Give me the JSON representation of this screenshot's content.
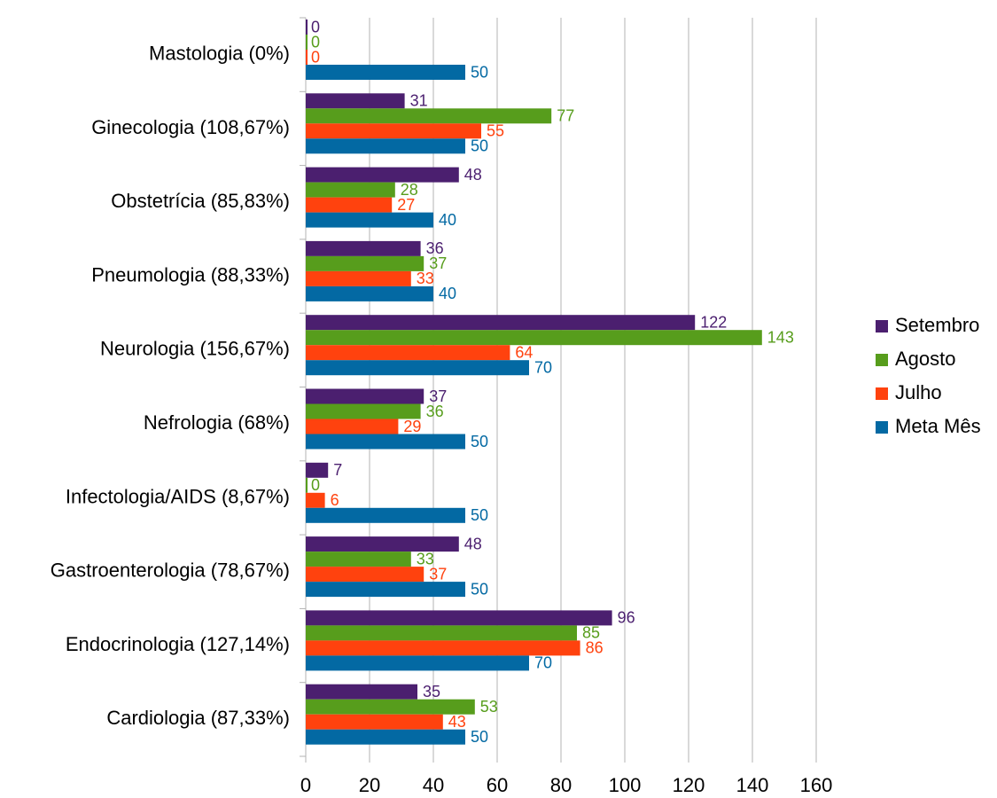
{
  "chart_data": {
    "type": "hbar",
    "categories": [
      "Mastologia (0%)",
      "Ginecologia (108,67%)",
      "Obstetrícia (85,83%)",
      "Pneumologia (88,33%)",
      "Neurologia (156,67%)",
      "Nefrologia (68%)",
      "Infectologia/AIDS (8,67%)",
      "Gastroenterologia (78,67%)",
      "Endocrinologia (127,14%)",
      "Cardiologia (87,33%)"
    ],
    "series": [
      {
        "name": "Setembro",
        "color": "#4b1f6f",
        "values": [
          0,
          31,
          48,
          36,
          122,
          37,
          7,
          48,
          96,
          35
        ]
      },
      {
        "name": "Agosto",
        "color": "#579d1c",
        "values": [
          0,
          77,
          28,
          37,
          143,
          36,
          0,
          33,
          85,
          53
        ]
      },
      {
        "name": "Julho",
        "color": "#ff420e",
        "values": [
          0,
          55,
          27,
          33,
          64,
          29,
          6,
          37,
          86,
          43
        ]
      },
      {
        "name": "Meta Mês",
        "color": "#0369a3",
        "values": [
          50,
          50,
          40,
          40,
          70,
          50,
          50,
          50,
          70,
          50
        ]
      }
    ],
    "xlim": [
      0,
      160
    ],
    "xticks": [
      0,
      20,
      40,
      60,
      80,
      100,
      120,
      140,
      160
    ],
    "grid": true,
    "legend": "right"
  }
}
